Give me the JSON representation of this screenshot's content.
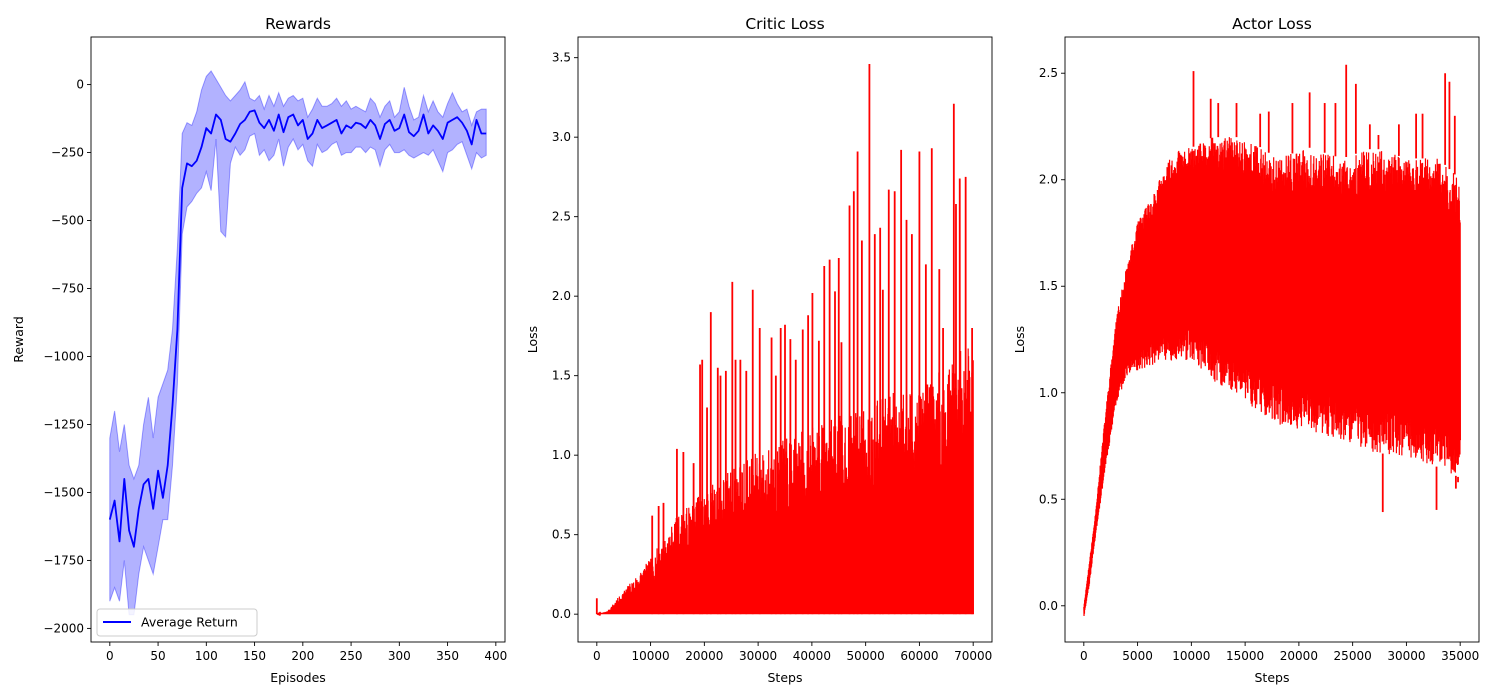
{
  "chart_data": [
    {
      "type": "line",
      "title": "Rewards",
      "xlabel": "Episodes",
      "ylabel": "Reward",
      "xlim": [
        -19.5,
        409.5
      ],
      "ylim": [
        -2050,
        175
      ],
      "xticks": [
        0,
        50,
        100,
        150,
        200,
        250,
        300,
        350,
        400
      ],
      "yticks": [
        0,
        -250,
        -500,
        -750,
        -1000,
        -1250,
        -1500,
        -1750,
        -2000
      ],
      "ytick_labels": [
        "0",
        "−250",
        "−500",
        "−750",
        "−1000",
        "−1250",
        "−1500",
        "−1750",
        "−2000"
      ],
      "legend": {
        "entries": [
          "Average Return"
        ],
        "placement": "lower-left"
      },
      "series": [
        {
          "name": "Average Return",
          "color": "#0000ff",
          "band_color": "#0000ff",
          "x": [
            0,
            5,
            10,
            15,
            20,
            25,
            30,
            35,
            40,
            45,
            50,
            55,
            60,
            65,
            70,
            75,
            80,
            85,
            90,
            95,
            100,
            105,
            110,
            115,
            120,
            125,
            130,
            135,
            140,
            145,
            150,
            155,
            160,
            165,
            170,
            175,
            180,
            185,
            190,
            195,
            200,
            205,
            210,
            215,
            220,
            225,
            230,
            235,
            240,
            245,
            250,
            255,
            260,
            265,
            270,
            275,
            280,
            285,
            290,
            295,
            300,
            305,
            310,
            315,
            320,
            325,
            330,
            335,
            340,
            345,
            350,
            355,
            360,
            365,
            370,
            375,
            380,
            385,
            390
          ],
          "y": [
            -1600,
            -1530,
            -1680,
            -1450,
            -1640,
            -1700,
            -1560,
            -1470,
            -1450,
            -1560,
            -1420,
            -1520,
            -1400,
            -1180,
            -900,
            -380,
            -290,
            -300,
            -280,
            -230,
            -160,
            -180,
            -110,
            -130,
            -200,
            -210,
            -180,
            -145,
            -130,
            -100,
            -95,
            -140,
            -160,
            -130,
            -170,
            -110,
            -175,
            -120,
            -110,
            -150,
            -130,
            -200,
            -180,
            -130,
            -160,
            -150,
            -140,
            -130,
            -180,
            -150,
            -160,
            -140,
            -145,
            -160,
            -130,
            -150,
            -200,
            -145,
            -130,
            -170,
            -160,
            -110,
            -175,
            -190,
            -170,
            -110,
            -180,
            -150,
            -170,
            -200,
            -140,
            -130,
            -120,
            -140,
            -170,
            -220,
            -130,
            -180,
            -180
          ],
          "band_upper": [
            -1300,
            -1200,
            -1350,
            -1250,
            -1400,
            -1450,
            -1400,
            -1250,
            -1150,
            -1300,
            -1150,
            -1100,
            -1050,
            -900,
            -600,
            -180,
            -140,
            -150,
            -100,
            -20,
            30,
            50,
            20,
            -10,
            -40,
            -60,
            -40,
            -20,
            10,
            -50,
            -60,
            -40,
            -90,
            -40,
            -80,
            -30,
            -80,
            -50,
            -40,
            -60,
            -50,
            -120,
            -90,
            -50,
            -80,
            -80,
            -70,
            -50,
            -80,
            -60,
            -90,
            -80,
            -90,
            -100,
            -50,
            -70,
            -120,
            -80,
            -60,
            -120,
            -100,
            -10,
            -80,
            -130,
            -120,
            -40,
            -100,
            -60,
            -100,
            -120,
            -70,
            -30,
            -70,
            -100,
            -90,
            -150,
            -100,
            -90,
            -90
          ],
          "band_lower": [
            -1900,
            -1850,
            -1900,
            -1750,
            -1950,
            -1950,
            -1800,
            -1700,
            -1750,
            -1800,
            -1700,
            -1600,
            -1600,
            -1400,
            -1100,
            -550,
            -450,
            -430,
            -400,
            -380,
            -320,
            -390,
            -200,
            -540,
            -560,
            -290,
            -230,
            -260,
            -240,
            -190,
            -180,
            -260,
            -240,
            -280,
            -260,
            -200,
            -300,
            -230,
            -200,
            -240,
            -220,
            -280,
            -300,
            -220,
            -250,
            -240,
            -220,
            -210,
            -260,
            -250,
            -250,
            -230,
            -230,
            -250,
            -230,
            -240,
            -300,
            -240,
            -220,
            -250,
            -250,
            -240,
            -260,
            -270,
            -260,
            -250,
            -260,
            -240,
            -280,
            -320,
            -250,
            -240,
            -220,
            -210,
            -260,
            -310,
            -250,
            -270,
            -260
          ]
        }
      ]
    },
    {
      "type": "line",
      "title": "Critic Loss",
      "xlabel": "Steps",
      "ylabel": "Loss",
      "xlim": [
        -3500,
        73500
      ],
      "ylim": [
        -0.175,
        3.63
      ],
      "xticks": [
        0,
        10000,
        20000,
        30000,
        40000,
        50000,
        60000,
        70000
      ],
      "yticks": [
        0.0,
        0.5,
        1.0,
        1.5,
        2.0,
        2.5,
        3.0,
        3.5
      ],
      "ytick_labels": [
        "0.0",
        "0.5",
        "1.0",
        "1.5",
        "2.0",
        "2.5",
        "3.0",
        "3.5"
      ],
      "series": [
        {
          "color": "#ff0000",
          "x_max": 70000,
          "envelope_x": [
            0,
            2000,
            5000,
            10000,
            15000,
            20000,
            25000,
            30000,
            35000,
            40000,
            45000,
            50000,
            55000,
            60000,
            65000,
            70000
          ],
          "envelope_y": [
            0.0,
            0.02,
            0.15,
            0.35,
            0.62,
            0.78,
            0.92,
            1.02,
            1.1,
            1.18,
            1.25,
            1.3,
            1.4,
            1.45,
            1.55,
            1.75
          ],
          "spikes_x": [
            0,
            10300,
            11500,
            12400,
            14900,
            16100,
            18000,
            19200,
            19600,
            20500,
            21200,
            22500,
            23000,
            24000,
            25200,
            25800,
            26700,
            27800,
            29000,
            30300,
            32500,
            33300,
            34200,
            35000,
            36000,
            37000,
            38300,
            39300,
            40100,
            41300,
            42300,
            43300,
            44300,
            45000,
            45500,
            47000,
            47800,
            48500,
            49300,
            50700,
            51700,
            52700,
            53200,
            54300,
            55400,
            56600,
            57600,
            58600,
            60000,
            61200,
            62300,
            63700,
            64400,
            66400,
            66800,
            67500,
            68600,
            69800
          ],
          "spikes_y": [
            0.1,
            0.62,
            0.68,
            0.7,
            1.04,
            1.02,
            0.95,
            1.57,
            1.6,
            1.3,
            1.9,
            1.55,
            1.5,
            1.53,
            2.09,
            1.6,
            1.6,
            1.53,
            2.04,
            1.8,
            1.74,
            1.5,
            1.8,
            1.82,
            1.73,
            1.6,
            1.79,
            1.88,
            2.02,
            1.72,
            2.19,
            2.23,
            2.03,
            2.24,
            1.71,
            2.57,
            2.66,
            2.91,
            2.35,
            3.46,
            2.39,
            2.43,
            2.04,
            2.67,
            2.66,
            2.92,
            2.48,
            2.39,
            2.91,
            2.2,
            2.93,
            2.17,
            1.8,
            3.21,
            2.58,
            2.74,
            2.75,
            1.8
          ]
        }
      ]
    },
    {
      "type": "line",
      "title": "Actor Loss",
      "xlabel": "Steps",
      "ylabel": "Loss",
      "xlim": [
        -1750,
        36750
      ],
      "ylim": [
        -0.17,
        2.67
      ],
      "xticks": [
        0,
        5000,
        10000,
        15000,
        20000,
        25000,
        30000,
        35000
      ],
      "yticks": [
        0.0,
        0.5,
        1.0,
        1.5,
        2.0,
        2.5
      ],
      "ytick_labels": [
        "0.0",
        "0.5",
        "1.0",
        "1.5",
        "2.0",
        "2.5"
      ],
      "series": [
        {
          "color": "#ff0000",
          "x_max": 35000,
          "upper_x": [
            0,
            500,
            1000,
            2000,
            3000,
            4000,
            5000,
            6000,
            7000,
            8000,
            9000,
            10000,
            12000,
            15000,
            18000,
            21000,
            24000,
            27000,
            30000,
            33000,
            35000
          ],
          "upper_y": [
            0.0,
            0.2,
            0.4,
            0.9,
            1.35,
            1.6,
            1.8,
            1.9,
            2.0,
            2.1,
            2.15,
            2.15,
            2.2,
            2.2,
            2.1,
            2.15,
            2.1,
            2.15,
            2.1,
            2.1,
            2.0
          ],
          "lower_x": [
            0,
            500,
            1000,
            2000,
            3000,
            4000,
            5000,
            6000,
            7000,
            8000,
            9000,
            10000,
            12000,
            15000,
            18000,
            21000,
            24000,
            27000,
            30000,
            33000,
            35000
          ],
          "lower_y": [
            -0.05,
            0.1,
            0.3,
            0.65,
            0.95,
            1.08,
            1.1,
            1.12,
            1.15,
            1.15,
            1.15,
            1.15,
            1.05,
            0.95,
            0.85,
            0.82,
            0.78,
            0.72,
            0.7,
            0.65,
            0.6
          ],
          "spikes_x": [
            10200,
            11800,
            12500,
            14200,
            16400,
            17200,
            19400,
            21000,
            22400,
            23400,
            24400,
            25300,
            26600,
            27400,
            27800,
            29300,
            30900,
            31500,
            32800,
            33600,
            34000,
            34500,
            34600,
            34800
          ],
          "spikes_y": [
            2.51,
            2.38,
            2.36,
            2.36,
            2.31,
            2.32,
            2.36,
            2.41,
            2.36,
            2.36,
            2.54,
            2.45,
            2.26,
            2.21,
            0.44,
            2.26,
            2.31,
            2.31,
            0.45,
            2.5,
            2.46,
            2.3,
            0.55,
            0.58
          ]
        }
      ]
    }
  ]
}
